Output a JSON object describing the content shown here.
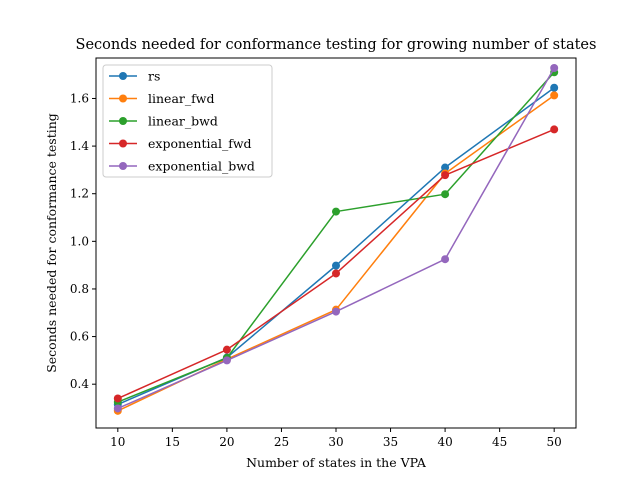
{
  "chart_data": {
    "type": "line",
    "title": "Seconds needed for conformance testing for growing number of states",
    "xlabel": "Number of states in the VPA",
    "ylabel": "Seconds needed for conformance testing",
    "x": [
      10,
      20,
      30,
      40,
      50
    ],
    "xlim": [
      8,
      52
    ],
    "ylim": [
      0.216,
      1.77
    ],
    "xticks": [
      10,
      15,
      20,
      25,
      30,
      35,
      40,
      45,
      50
    ],
    "yticks": [
      0.4,
      0.6,
      0.8,
      1.0,
      1.2,
      1.4,
      1.6
    ],
    "grid": false,
    "legend_position": "upper-left",
    "series": [
      {
        "name": "rs",
        "color": "#1f77b4",
        "values": [
          0.315,
          0.512,
          0.898,
          1.31,
          1.645
        ]
      },
      {
        "name": "linear_fwd",
        "color": "#ff7f0e",
        "values": [
          0.288,
          0.505,
          0.713,
          1.285,
          1.613
        ]
      },
      {
        "name": "linear_bwd",
        "color": "#2ca02c",
        "values": [
          0.325,
          0.51,
          1.125,
          1.198,
          1.71
        ]
      },
      {
        "name": "exponential_fwd",
        "color": "#d62728",
        "values": [
          0.34,
          0.545,
          0.865,
          1.278,
          1.47
        ]
      },
      {
        "name": "exponential_bwd",
        "color": "#9467bd",
        "values": [
          0.298,
          0.5,
          0.705,
          0.925,
          1.728
        ]
      }
    ]
  }
}
